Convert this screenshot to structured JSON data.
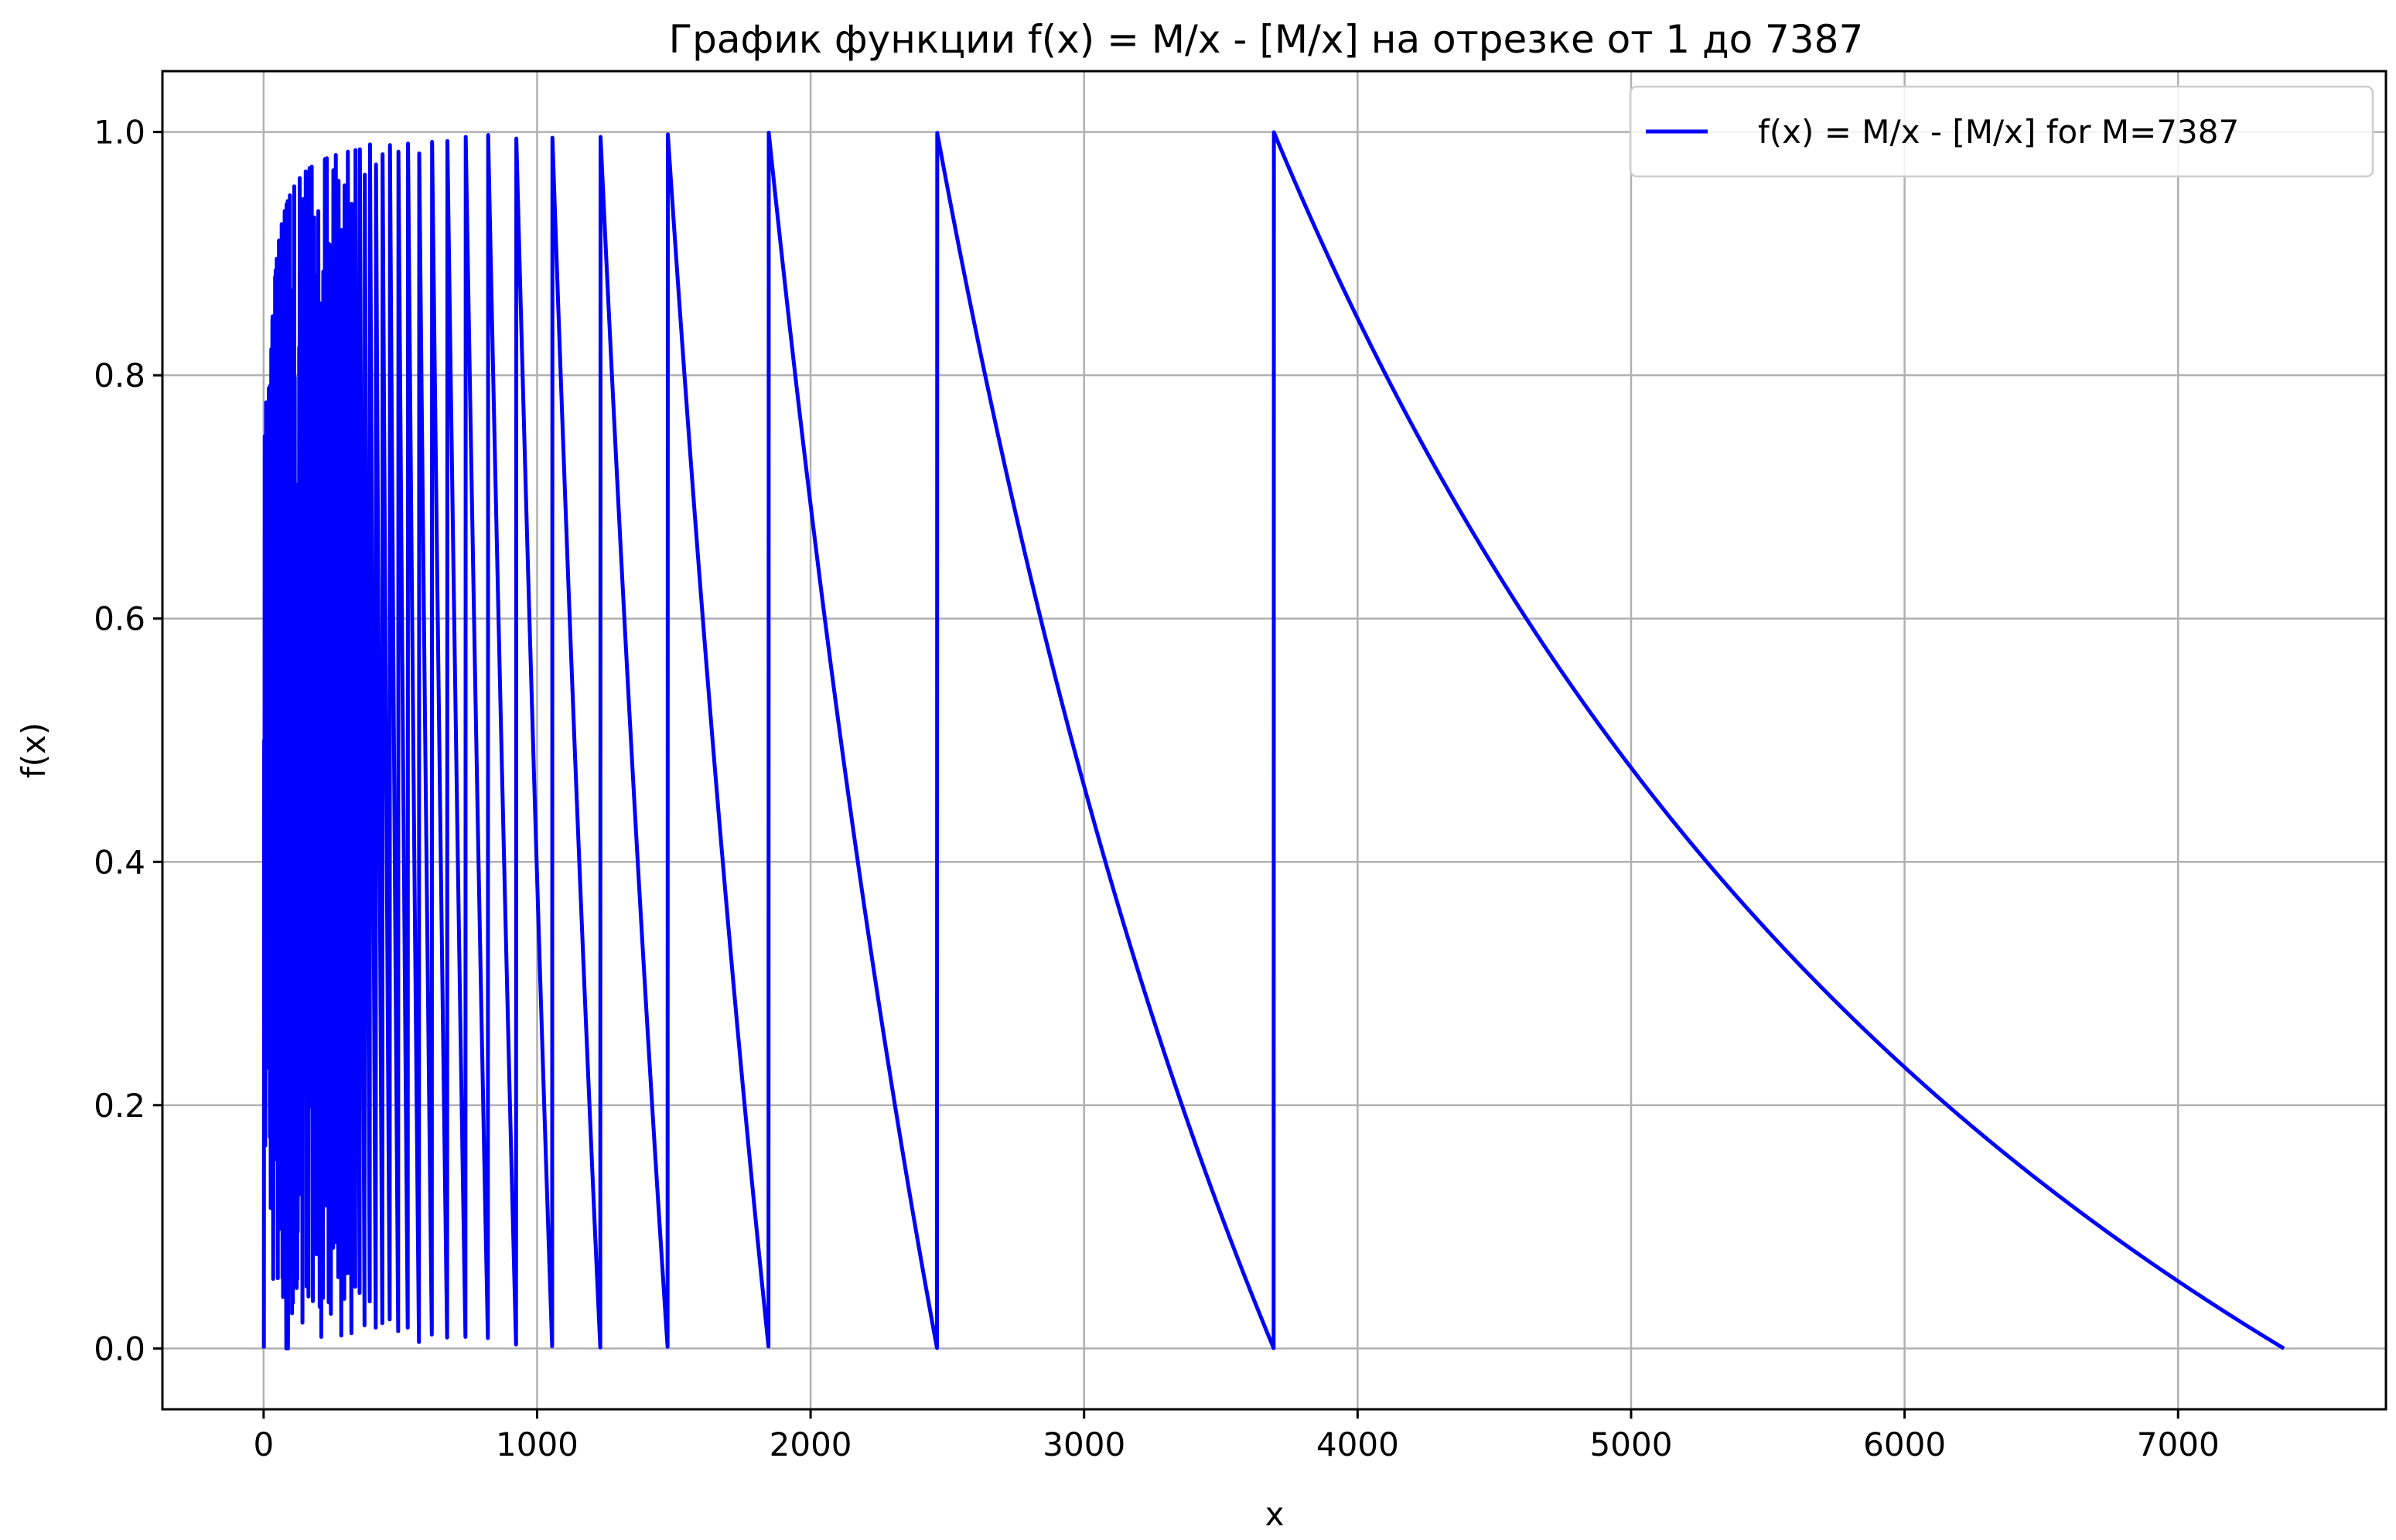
{
  "chart_data": {
    "type": "line",
    "title": "График функции f(x) = M/x - [M/x] на отрезке от 1 до 7387",
    "xlabel": "x",
    "ylabel": "f(x)",
    "xlim": [
      -370,
      7760
    ],
    "ylim": [
      -0.05,
      1.05
    ],
    "x_ticks": [
      0,
      1000,
      2000,
      3000,
      4000,
      5000,
      6000,
      7000
    ],
    "x_tick_labels": [
      "0",
      "1000",
      "2000",
      "3000",
      "4000",
      "5000",
      "6000",
      "7000"
    ],
    "y_ticks": [
      0.0,
      0.2,
      0.4,
      0.6,
      0.8,
      1.0
    ],
    "y_tick_labels": [
      "0.0",
      "0.2",
      "0.4",
      "0.6",
      "0.8",
      "1.0"
    ],
    "grid": true,
    "legend_position": "top-right",
    "series": [
      {
        "name": "f(x) = M/x - [M/x] for M=7387",
        "color": "#0000ff",
        "function": "M/x - [M/x]",
        "M": 7387,
        "x_range": [
          1,
          7387
        ]
      }
    ]
  }
}
